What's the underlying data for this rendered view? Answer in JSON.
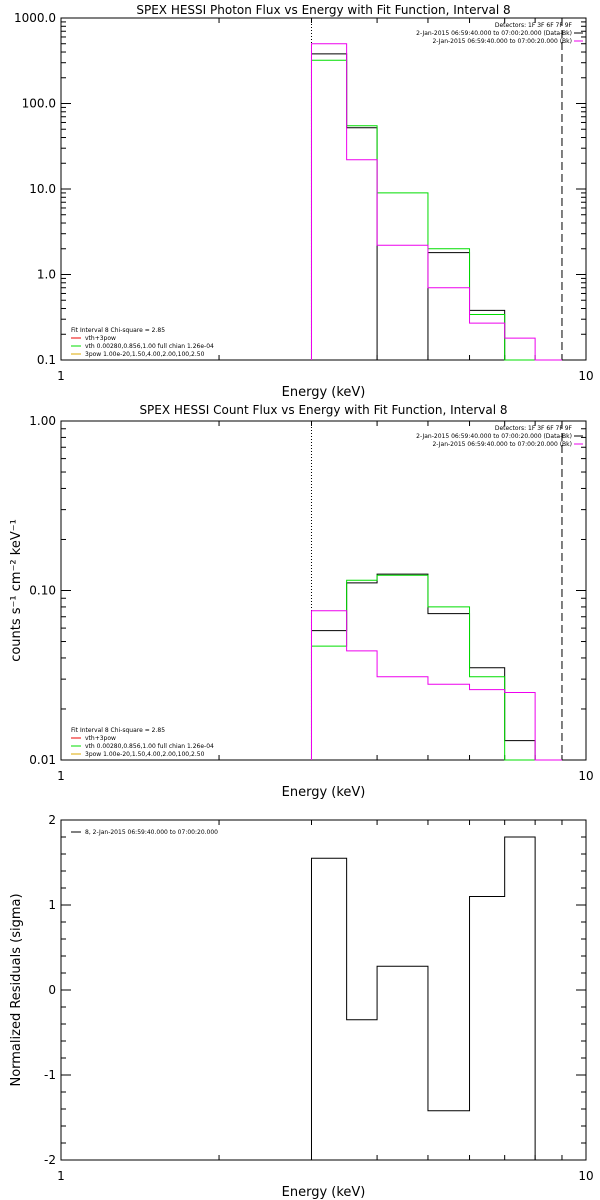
{
  "chart_data": [
    {
      "type": "line",
      "title": "SPEX HESSI Photon Flux vs Energy with Fit Function, Interval 8",
      "xlabel": "Energy (keV)",
      "ylabel": "",
      "xscale": "log",
      "yscale": "log",
      "xlim": [
        1,
        10
      ],
      "ylim": [
        0.1,
        1000
      ],
      "xticks": [
        {
          "v": 1,
          "label": "1"
        },
        {
          "v": 10,
          "label": "10"
        }
      ],
      "yticks": [
        {
          "v": 0.1,
          "label": "0.1"
        },
        {
          "v": 1,
          "label": "1.0"
        },
        {
          "v": 10,
          "label": "10.0"
        },
        {
          "v": 100,
          "label": "100.0"
        },
        {
          "v": 1000,
          "label": "1000.0"
        }
      ],
      "edges": [
        3,
        3.5,
        4,
        5,
        6,
        7,
        8,
        9
      ],
      "series": [
        {
          "color": "#000000",
          "values": [
            380,
            52,
            null,
            1.8,
            0.38,
            0.1,
            null
          ]
        },
        {
          "color": "#00dd00",
          "values": [
            320,
            55,
            9,
            2,
            0.34,
            null,
            null
          ]
        },
        {
          "color": "#ee00ee",
          "values": [
            500,
            22,
            2.2,
            0.7,
            0.27,
            0.18,
            null
          ]
        }
      ],
      "vlines": [
        {
          "x": 3,
          "style": "dotted"
        },
        {
          "x": 9,
          "style": "dashed"
        }
      ],
      "header_text": [
        {
          "text": "Detectors: 1F 3F 6F 7F 9F"
        },
        {
          "text": "2-Jan-2015 06:59:40.000 to 07:00:20.000 (Data-Bk)",
          "color": "#000000"
        },
        {
          "text": "2-Jan-2015 06:59:40.000 to 07:00:20.000 (Bk)",
          "color": "#ee00ee"
        }
      ],
      "legend": [
        {
          "text": "Fit Interval 8   Chi-square = 2.85",
          "color": null
        },
        {
          "text": "vth+3pow",
          "color": "#ee0000"
        },
        {
          "text": "vth 0.00280,0.856,1.00  full chian 1.26e-04",
          "color": "#00dd00"
        },
        {
          "text": "3pow 1.00e-20,1.50,4.00,2.00,100,2.50",
          "color": "#ddaa00"
        }
      ]
    },
    {
      "type": "line",
      "title": "SPEX HESSI Count Flux vs Energy with Fit Function, Interval 8",
      "xlabel": "Energy (keV)",
      "ylabel": "counts s⁻¹ cm⁻² keV⁻¹",
      "xscale": "log",
      "yscale": "log",
      "xlim": [
        1,
        10
      ],
      "ylim": [
        0.01,
        1
      ],
      "xticks": [
        {
          "v": 1,
          "label": "1"
        },
        {
          "v": 10,
          "label": "10"
        }
      ],
      "yticks": [
        {
          "v": 0.01,
          "label": "0.01"
        },
        {
          "v": 0.1,
          "label": "0.10"
        },
        {
          "v": 1,
          "label": "1.00"
        }
      ],
      "edges": [
        3,
        3.5,
        4,
        5,
        6,
        7,
        8,
        9
      ],
      "series": [
        {
          "color": "#000000",
          "values": [
            0.058,
            0.111,
            0.125,
            0.073,
            0.035,
            0.013,
            null
          ]
        },
        {
          "color": "#00dd00",
          "values": [
            0.047,
            0.115,
            0.123,
            0.08,
            0.031,
            null,
            null
          ]
        },
        {
          "color": "#ee00ee",
          "values": [
            0.076,
            0.044,
            0.031,
            0.028,
            0.026,
            0.025,
            null
          ]
        }
      ],
      "vlines": [
        {
          "x": 3,
          "style": "dotted"
        },
        {
          "x": 9,
          "style": "dashed"
        }
      ],
      "header_text": [
        {
          "text": "Detectors: 1F 3F 6F 7F 9F"
        },
        {
          "text": "2-Jan-2015 06:59:40.000 to 07:00:20.000 (Data-Bk)",
          "color": "#000000"
        },
        {
          "text": "2-Jan-2015 06:59:40.000 to 07:00:20.000 (Bk)",
          "color": "#ee00ee"
        }
      ],
      "legend": [
        {
          "text": "Fit Interval 8   Chi-square = 2.85",
          "color": null
        },
        {
          "text": "vth+3pow",
          "color": "#ee0000"
        },
        {
          "text": "vth 0.00280,0.856,1.00  full chian 1.26e-04",
          "color": "#00dd00"
        },
        {
          "text": "3pow 1.00e-20,1.50,4.00,2.00,100,2.50",
          "color": "#ddaa00"
        }
      ]
    },
    {
      "type": "line",
      "title": "",
      "xlabel": "Energy (keV)",
      "ylabel": "Normalized Residuals (sigma)",
      "xscale": "log",
      "yscale": "linear",
      "xlim": [
        1,
        10
      ],
      "ylim": [
        -2,
        2
      ],
      "xticks": [
        {
          "v": 1,
          "label": "1"
        },
        {
          "v": 10,
          "label": "10"
        }
      ],
      "yticks": [
        {
          "v": -2,
          "label": "-2"
        },
        {
          "v": -1,
          "label": "-1"
        },
        {
          "v": 0,
          "label": "0"
        },
        {
          "v": 1,
          "label": "1"
        },
        {
          "v": 2,
          "label": "2"
        }
      ],
      "edges": [
        3,
        3.5,
        4,
        5,
        6,
        7,
        8,
        9
      ],
      "series": [
        {
          "color": "#000000",
          "values": [
            1.55,
            -0.35,
            0.28,
            -1.42,
            1.1,
            1.8,
            null
          ]
        }
      ],
      "vlines": [],
      "header_text": [],
      "legend": [
        {
          "text": "8,  2-Jan-2015 06:59:40.000 to 07:00:20.000",
          "color": "#000000"
        }
      ]
    }
  ]
}
